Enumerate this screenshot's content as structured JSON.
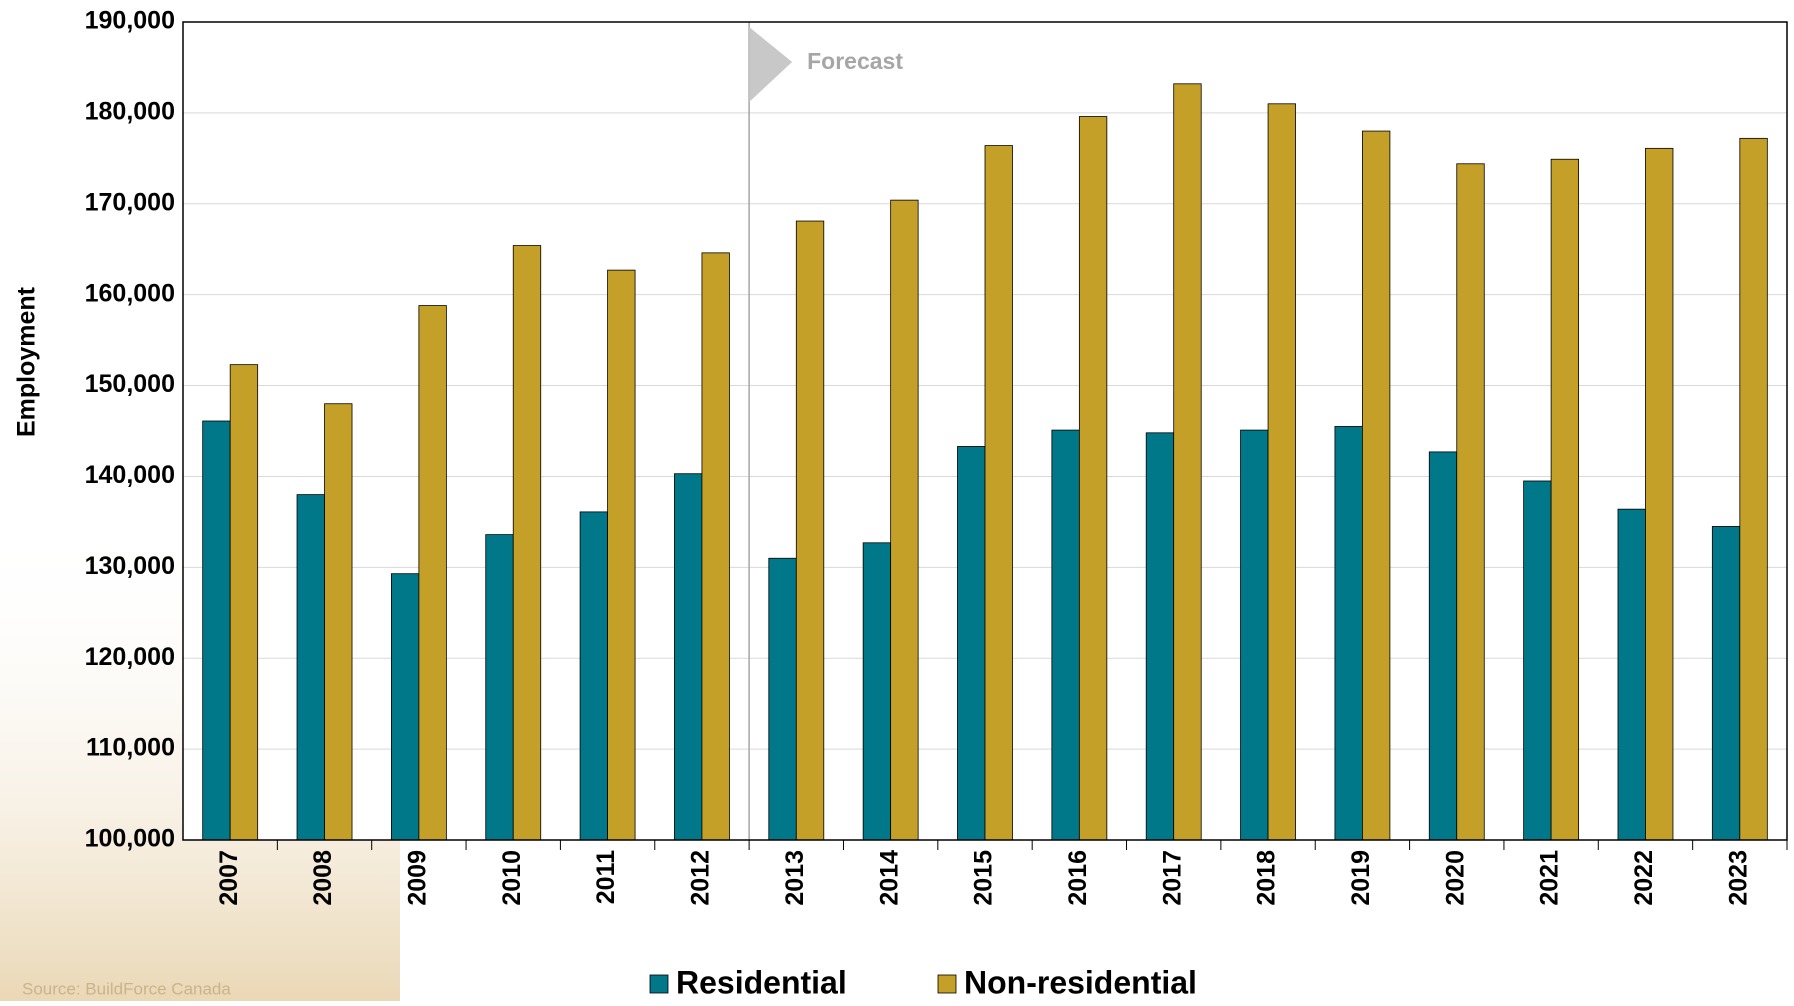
{
  "chart_data": {
    "type": "bar",
    "y_label": "Employment",
    "annotation": "Forecast",
    "source": "Source: BuildForce Canada",
    "categories": [
      "2007",
      "2008",
      "2009",
      "2010",
      "2011",
      "2012",
      "2013",
      "2014",
      "2015",
      "2016",
      "2017",
      "2018",
      "2019",
      "2020",
      "2021",
      "2022",
      "2023"
    ],
    "series": [
      {
        "name": "Residential",
        "color": "#00788a",
        "values": [
          146100,
          138000,
          129300,
          133600,
          136100,
          140300,
          131000,
          132700,
          143300,
          145100,
          144800,
          145100,
          145500,
          142700,
          139500,
          136400,
          134500
        ]
      },
      {
        "name": "Non-residential",
        "color": "#c5a028",
        "values": [
          152300,
          148000,
          158800,
          165400,
          162700,
          164600,
          168100,
          170400,
          176400,
          179600,
          183200,
          181000,
          178000,
          174400,
          174900,
          176100,
          177200
        ]
      }
    ],
    "ylim": [
      100000,
      190000
    ],
    "yticks": [
      {
        "value": 100000,
        "label": "100,000"
      },
      {
        "value": 110000,
        "label": "110,000"
      },
      {
        "value": 120000,
        "label": "120,000"
      },
      {
        "value": 130000,
        "label": "130,000"
      },
      {
        "value": 140000,
        "label": "140,000"
      },
      {
        "value": 150000,
        "label": "150,000"
      },
      {
        "value": 160000,
        "label": "160,000"
      },
      {
        "value": 170000,
        "label": "170,000"
      },
      {
        "value": 180000,
        "label": "180,000"
      },
      {
        "value": 190000,
        "label": "190,000"
      }
    ],
    "grid": true
  }
}
